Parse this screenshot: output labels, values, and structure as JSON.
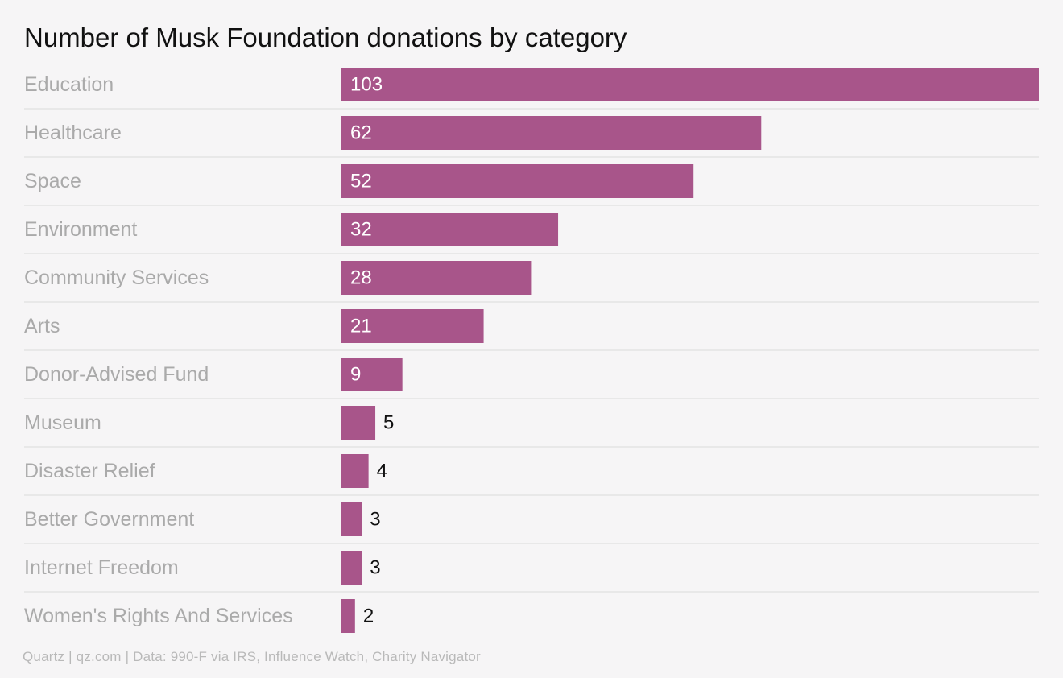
{
  "chart_data": {
    "type": "bar",
    "orientation": "horizontal",
    "title": "Number of Musk Foundation donations by category",
    "categories": [
      "Education",
      "Healthcare",
      "Space",
      "Environment",
      "Community Services",
      "Arts",
      "Donor-Advised Fund",
      "Museum",
      "Disaster Relief",
      "Better Government",
      "Internet Freedom",
      "Women's Rights And Services"
    ],
    "values": [
      103,
      62,
      52,
      32,
      28,
      21,
      9,
      5,
      4,
      3,
      3,
      2
    ],
    "xlim": [
      0,
      103
    ],
    "bar_color": "#a8558a",
    "label_color": "#aaaaaa",
    "grid": false,
    "source": "Quartz | qz.com | Data: 990-F via IRS, Influence Watch, Charity Navigator"
  }
}
